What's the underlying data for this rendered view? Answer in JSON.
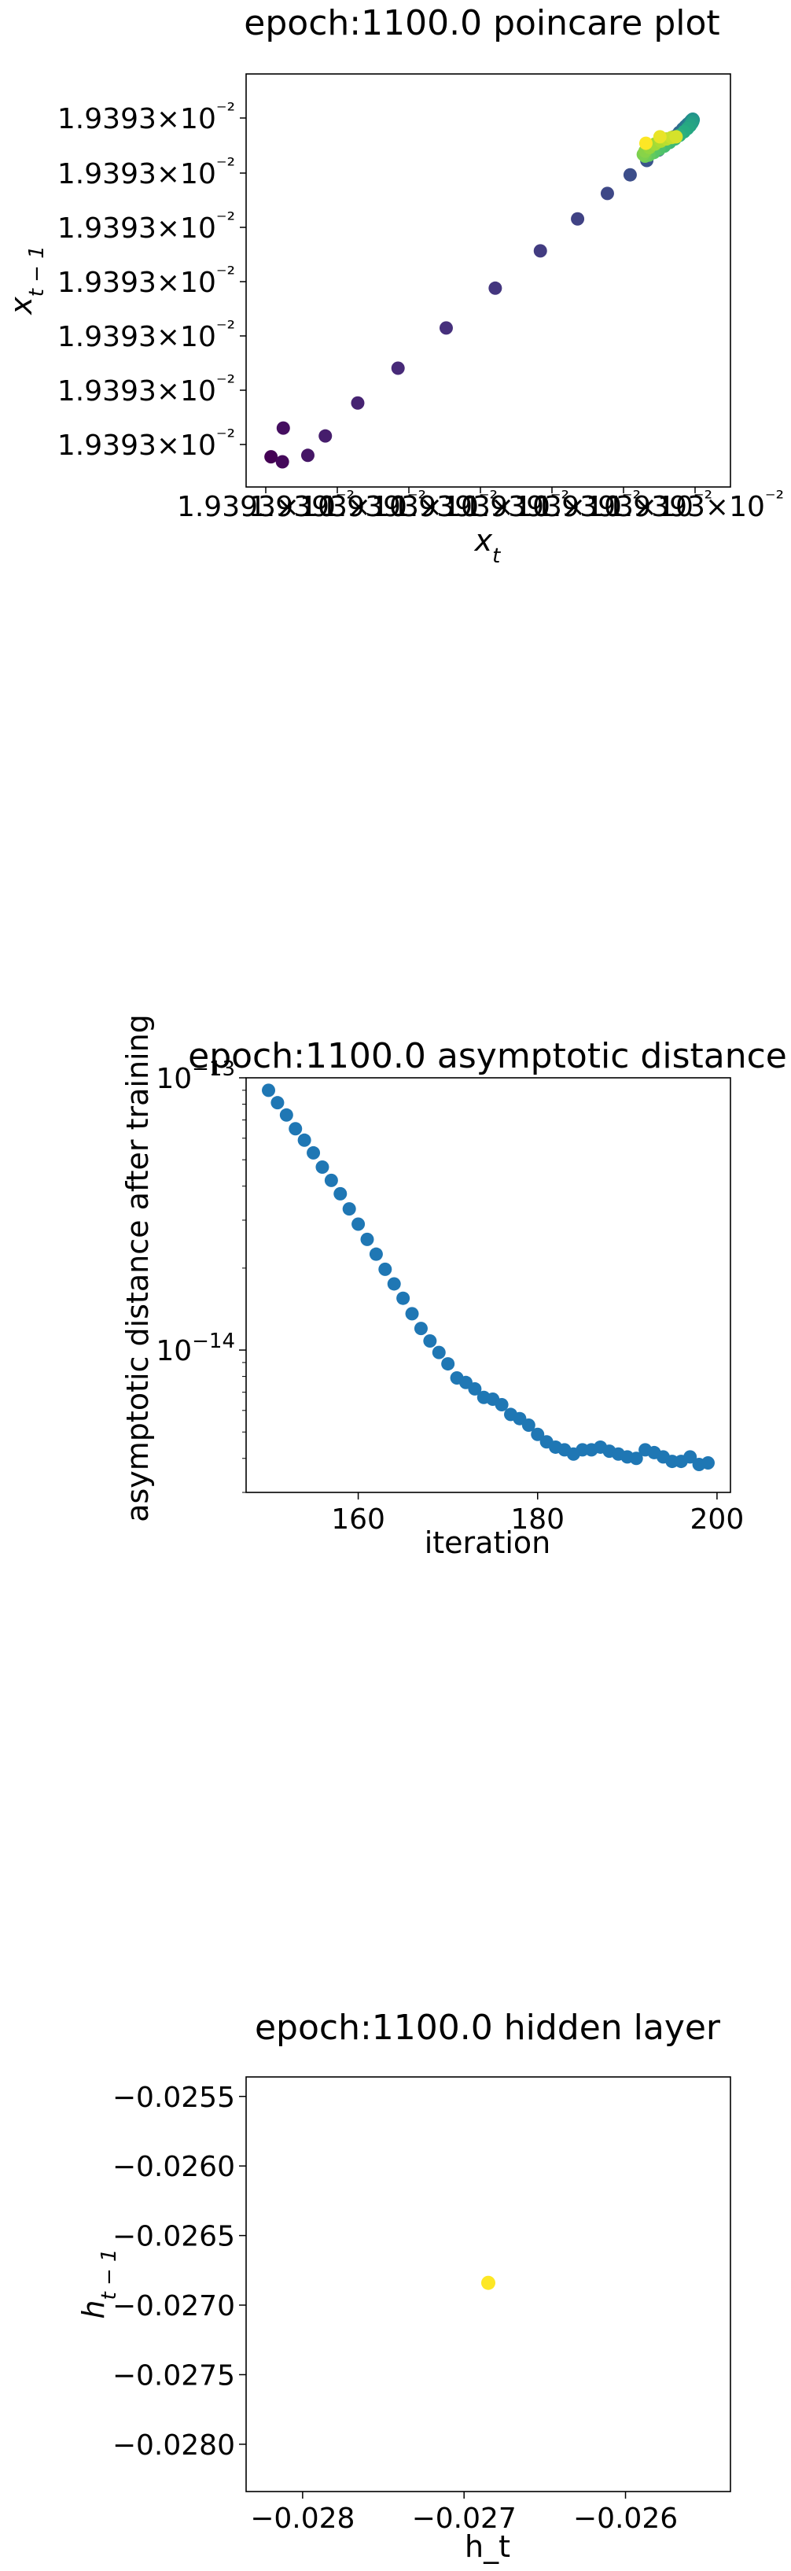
{
  "chart_data": [
    {
      "type": "scatter",
      "title": "epoch:1100.0 poincare plot",
      "xlabel": "x_t",
      "ylabel": "x_{t-1}",
      "x_tick_labels": [
        "1.9393 × 10⁻²",
        "1.9393 × 10⁻²",
        "1.9393 × 10⁻²",
        "1.9393 × 10⁻²",
        "1.9393 × 10⁻²",
        "1.9393 × 10⁻²",
        "1.9393 × 10⁻²"
      ],
      "y_tick_labels": [
        "1.9393 × 10⁻²",
        "1.9393 × 10⁻²",
        "1.9393 × 10⁻²",
        "1.9393 × 10⁻²",
        "1.9393 × 10⁻²",
        "1.9393 × 10⁻²",
        "1.9393 × 10⁻²"
      ],
      "colormap": "viridis",
      "points": [
        {
          "x": 0.012,
          "y": 0.014,
          "c": 0.0
        },
        {
          "x": 0.038,
          "y": 0.0,
          "c": 0.02
        },
        {
          "x": 0.04,
          "y": 0.094,
          "c": 0.04
        },
        {
          "x": 0.096,
          "y": 0.018,
          "c": 0.06
        },
        {
          "x": 0.136,
          "y": 0.072,
          "c": 0.08
        },
        {
          "x": 0.21,
          "y": 0.164,
          "c": 0.1
        },
        {
          "x": 0.302,
          "y": 0.261,
          "c": 0.12
        },
        {
          "x": 0.412,
          "y": 0.373,
          "c": 0.14
        },
        {
          "x": 0.524,
          "y": 0.484,
          "c": 0.16
        },
        {
          "x": 0.627,
          "y": 0.588,
          "c": 0.18
        },
        {
          "x": 0.712,
          "y": 0.677,
          "c": 0.2
        },
        {
          "x": 0.78,
          "y": 0.748,
          "c": 0.22
        },
        {
          "x": 0.832,
          "y": 0.8,
          "c": 0.24
        },
        {
          "x": 0.87,
          "y": 0.84,
          "c": 0.26
        },
        {
          "x": 0.897,
          "y": 0.869,
          "c": 0.28
        },
        {
          "x": 0.918,
          "y": 0.89,
          "c": 0.3
        },
        {
          "x": 0.932,
          "y": 0.906,
          "c": 0.32
        },
        {
          "x": 0.944,
          "y": 0.918,
          "c": 0.34
        },
        {
          "x": 0.952,
          "y": 0.928,
          "c": 0.36
        },
        {
          "x": 0.958,
          "y": 0.935,
          "c": 0.38
        },
        {
          "x": 0.963,
          "y": 0.941,
          "c": 0.4
        },
        {
          "x": 0.967,
          "y": 0.945,
          "c": 0.42
        },
        {
          "x": 0.97,
          "y": 0.949,
          "c": 0.44
        },
        {
          "x": 0.972,
          "y": 0.952,
          "c": 0.46
        },
        {
          "x": 0.974,
          "y": 0.954,
          "c": 0.48
        },
        {
          "x": 0.975,
          "y": 0.955,
          "c": 0.5
        },
        {
          "x": 0.976,
          "y": 0.953,
          "c": 0.52
        },
        {
          "x": 0.975,
          "y": 0.949,
          "c": 0.54
        },
        {
          "x": 0.973,
          "y": 0.944,
          "c": 0.56
        },
        {
          "x": 0.969,
          "y": 0.937,
          "c": 0.58
        },
        {
          "x": 0.963,
          "y": 0.929,
          "c": 0.6
        },
        {
          "x": 0.955,
          "y": 0.92,
          "c": 0.62
        },
        {
          "x": 0.945,
          "y": 0.91,
          "c": 0.64
        },
        {
          "x": 0.934,
          "y": 0.9,
          "c": 0.66
        },
        {
          "x": 0.922,
          "y": 0.89,
          "c": 0.68
        },
        {
          "x": 0.91,
          "y": 0.88,
          "c": 0.7
        },
        {
          "x": 0.898,
          "y": 0.871,
          "c": 0.72
        },
        {
          "x": 0.886,
          "y": 0.862,
          "c": 0.74
        },
        {
          "x": 0.875,
          "y": 0.855,
          "c": 0.76
        },
        {
          "x": 0.866,
          "y": 0.852,
          "c": 0.78
        },
        {
          "x": 0.862,
          "y": 0.857,
          "c": 0.8
        },
        {
          "x": 0.866,
          "y": 0.866,
          "c": 0.82
        },
        {
          "x": 0.876,
          "y": 0.876,
          "c": 0.84
        },
        {
          "x": 0.889,
          "y": 0.886,
          "c": 0.86
        },
        {
          "x": 0.902,
          "y": 0.894,
          "c": 0.88
        },
        {
          "x": 0.915,
          "y": 0.9,
          "c": 0.9
        },
        {
          "x": 0.927,
          "y": 0.904,
          "c": 0.92
        },
        {
          "x": 0.937,
          "y": 0.906,
          "c": 0.94
        },
        {
          "x": 0.9,
          "y": 0.906,
          "c": 0.97
        },
        {
          "x": 0.868,
          "y": 0.888,
          "c": 1.0
        }
      ]
    },
    {
      "type": "scatter",
      "title": "epoch:1100.0 asymptotic distance",
      "xlabel": "iteration",
      "ylabel": "asymptotic distance after training",
      "yscale": "log",
      "xlim": [
        147.5,
        201.5
      ],
      "ylim": [
        3e-15,
        1e-13
      ],
      "x_ticks": [
        160,
        180,
        200
      ],
      "y_ticks": [
        1e-14,
        1e-13
      ],
      "y_tick_labels": [
        {
          "base": "10",
          "exp": "−14"
        },
        {
          "base": "10",
          "exp": "−13"
        }
      ],
      "color": "#1f77b4",
      "x": [
        150,
        151,
        152,
        153,
        154,
        155,
        156,
        157,
        158,
        159,
        160,
        161,
        162,
        163,
        164,
        165,
        166,
        167,
        168,
        169,
        170,
        171,
        172,
        173,
        174,
        175,
        176,
        177,
        178,
        179,
        180,
        181,
        182,
        183,
        184,
        185,
        186,
        187,
        188,
        189,
        190,
        191,
        192,
        193,
        194,
        195,
        196,
        197,
        198,
        199
      ],
      "y": [
        9e-14,
        8.1e-14,
        7.3e-14,
        6.5e-14,
        5.9e-14,
        5.3e-14,
        4.7e-14,
        4.2e-14,
        3.75e-14,
        3.3e-14,
        2.9e-14,
        2.55e-14,
        2.25e-14,
        1.98e-14,
        1.75e-14,
        1.55e-14,
        1.36e-14,
        1.2e-14,
        1.08e-14,
        9.8e-15,
        8.9e-15,
        7.9e-15,
        7.6e-15,
        7.2e-15,
        6.7e-15,
        6.6e-15,
        6.3e-15,
        5.8e-15,
        5.6e-15,
        5.3e-15,
        4.9e-15,
        4.6e-15,
        4.4e-15,
        4.3e-15,
        4.15e-15,
        4.3e-15,
        4.3e-15,
        4.4e-15,
        4.25e-15,
        4.15e-15,
        4.05e-15,
        4e-15,
        4.3e-15,
        4.2e-15,
        4.05e-15,
        3.9e-15,
        3.9e-15,
        4.05e-15,
        3.8e-15,
        3.85e-15
      ]
    },
    {
      "type": "scatter",
      "title": "epoch:1100.0 hidden layer",
      "xlabel": "h_t",
      "ylabel": "h_{t-1}",
      "xlim": [
        -0.02835,
        -0.02535
      ],
      "ylim": [
        -0.02834,
        -0.02536
      ],
      "x_ticks": [
        -0.028,
        -0.027,
        -0.026
      ],
      "x_tick_labels": [
        "−0.028",
        "−0.027",
        "−0.026"
      ],
      "y_ticks": [
        -0.028,
        -0.0275,
        -0.027,
        -0.0265,
        -0.026,
        -0.0255
      ],
      "y_tick_labels": [
        "−0.0280",
        "−0.0275",
        "−0.0270",
        "−0.0265",
        "−0.0260",
        "−0.0255"
      ],
      "points": [
        {
          "x": -0.02685,
          "y": -0.02684
        }
      ],
      "color": "#fde725"
    }
  ]
}
